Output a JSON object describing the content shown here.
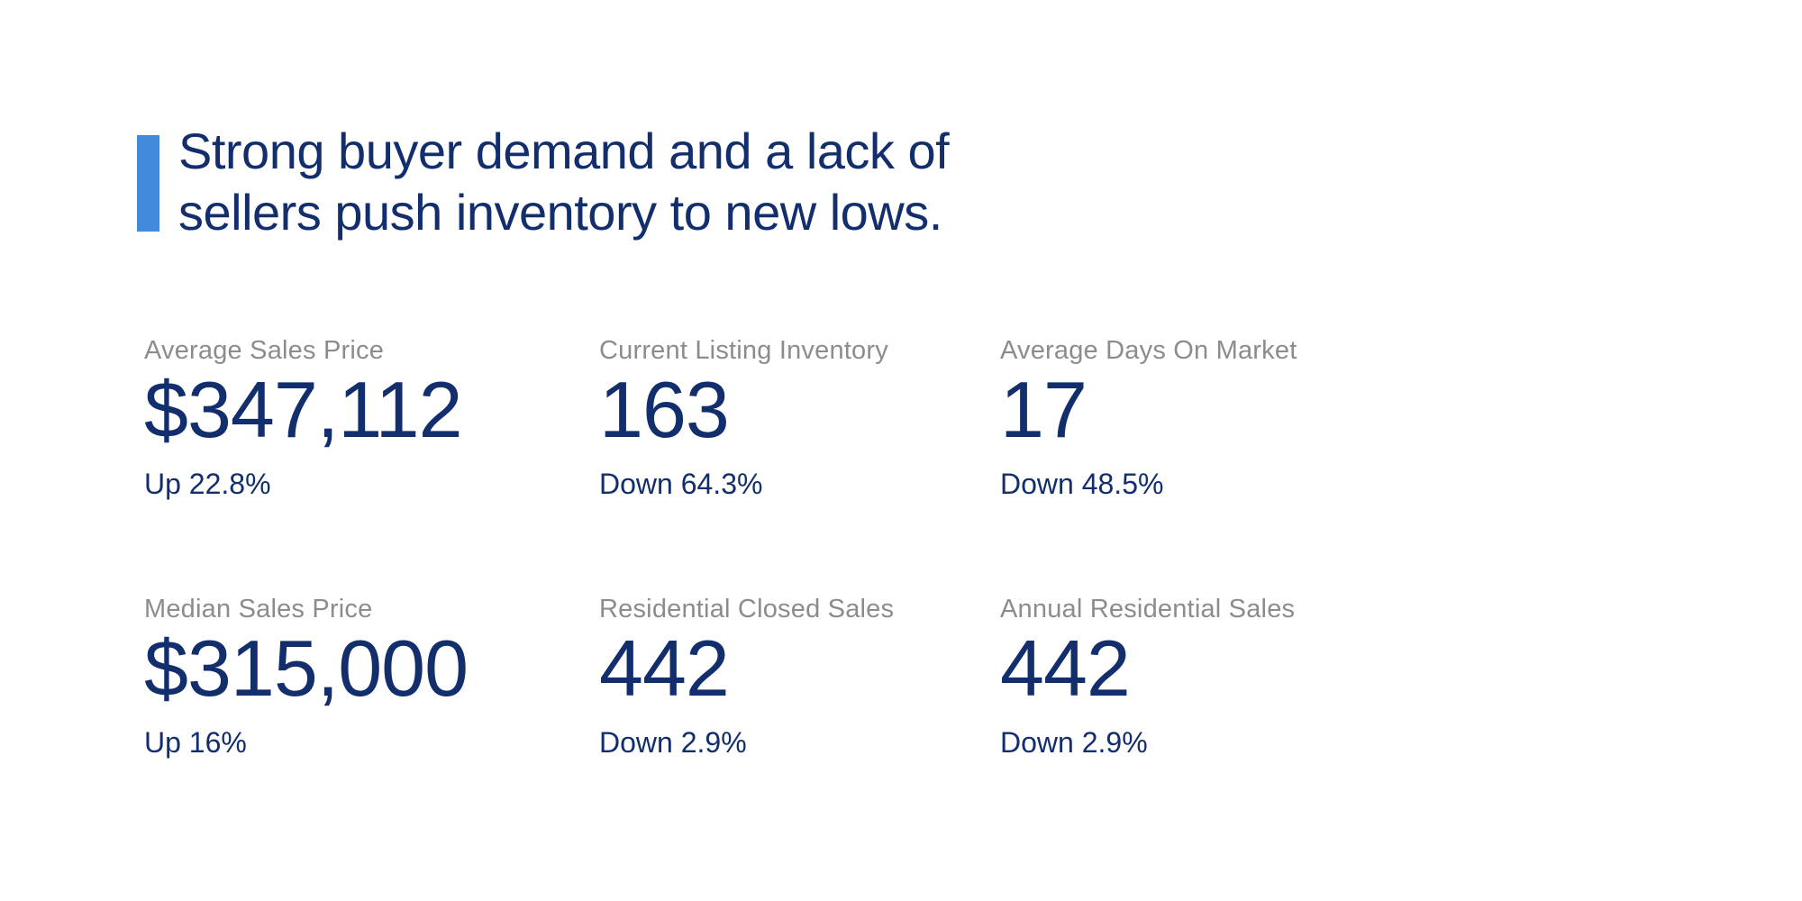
{
  "colors": {
    "bar_blue": "#4189db",
    "navy": "#132e6d",
    "label_gray": "#8c8c8c",
    "background": "#ffffff"
  },
  "headline": {
    "text": "Strong buyer demand and a lack of sellers push inventory to new lows.",
    "line1": "Strong buyer demand and a lack of",
    "line2": "sellers push inventory to new lows."
  },
  "stats": [
    {
      "label": "Average Sales Price",
      "value": "$347,112",
      "change": "Up 22.8%",
      "direction": "up"
    },
    {
      "label": "Current Listing Inventory",
      "value": "163",
      "change": "Down 64.3%",
      "direction": "down"
    },
    {
      "label": "Average Days On Market",
      "value": "17",
      "change": "Down 48.5%",
      "direction": "down"
    },
    {
      "label": "Median Sales Price",
      "value": "$315,000",
      "change": "Up 16%",
      "direction": "up"
    },
    {
      "label": "Residential Closed Sales",
      "value": "442",
      "change": "Down 2.9%",
      "direction": "down"
    },
    {
      "label": "Annual Residential Sales",
      "value": "442",
      "change": "Down 2.9%",
      "direction": "down"
    }
  ]
}
